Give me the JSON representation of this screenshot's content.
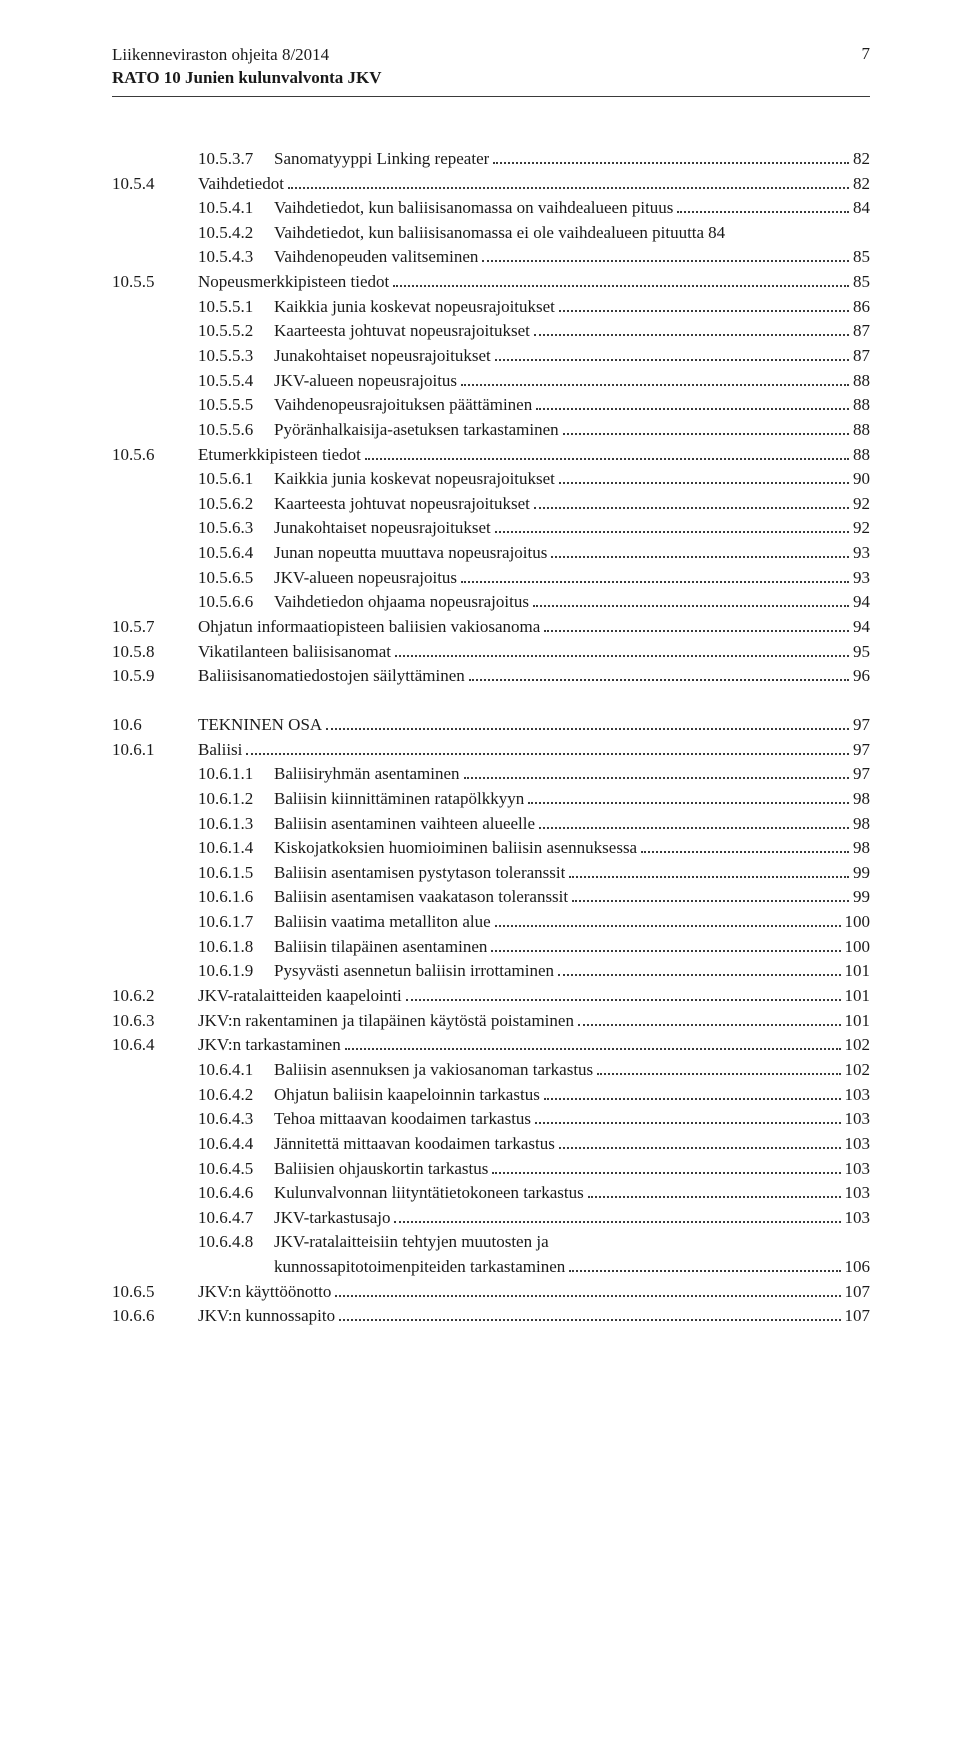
{
  "header": {
    "title": "Liikenneviraston ohjeita 8/2014",
    "subtitle": "RATO 10 Junien kulunvalvonta JKV",
    "page": "7"
  },
  "blocks": [
    {
      "rows": [
        {
          "indent": true,
          "sub": "10.5.3.7",
          "label": "Sanomatyyppi Linking repeater",
          "page": "82"
        },
        {
          "num": "10.5.4",
          "label": "Vaihdetiedot",
          "page": "82"
        },
        {
          "indent": true,
          "sub": "10.5.4.1",
          "label": "Vaihdetiedot, kun baliisisanomassa on vaihdealueen pituus",
          "page": "84"
        },
        {
          "indent": true,
          "sub": "10.5.4.2",
          "label": "Vaihdetiedot, kun baliisisanomassa ei ole vaihdealueen pituutta",
          "page": "84",
          "noLeader": true
        },
        {
          "indent": true,
          "sub": "10.5.4.3",
          "label": "Vaihdenopeuden valitseminen",
          "page": "85"
        },
        {
          "num": "10.5.5",
          "label": "Nopeusmerkkipisteen tiedot",
          "page": "85"
        },
        {
          "indent": true,
          "sub": "10.5.5.1",
          "label": "Kaikkia junia koskevat nopeusrajoitukset",
          "page": "86"
        },
        {
          "indent": true,
          "sub": "10.5.5.2",
          "label": "Kaarteesta johtuvat nopeusrajoitukset",
          "page": "87"
        },
        {
          "indent": true,
          "sub": "10.5.5.3",
          "label": "Junakohtaiset nopeusrajoitukset",
          "page": "87"
        },
        {
          "indent": true,
          "sub": "10.5.5.4",
          "label": "JKV-alueen nopeusrajoitus",
          "page": "88"
        },
        {
          "indent": true,
          "sub": "10.5.5.5",
          "label": "Vaihdenopeusrajoituksen päättäminen",
          "page": "88"
        },
        {
          "indent": true,
          "sub": "10.5.5.6",
          "label": "Pyöränhalkaisija-asetuksen tarkastaminen",
          "page": "88"
        },
        {
          "num": "10.5.6",
          "label": "Etumerkkipisteen tiedot",
          "page": "88"
        },
        {
          "indent": true,
          "sub": "10.5.6.1",
          "label": "Kaikkia junia koskevat nopeusrajoitukset",
          "page": "90"
        },
        {
          "indent": true,
          "sub": "10.5.6.2",
          "label": "Kaarteesta johtuvat nopeusrajoitukset",
          "page": "92"
        },
        {
          "indent": true,
          "sub": "10.5.6.3",
          "label": "Junakohtaiset nopeusrajoitukset",
          "page": "92"
        },
        {
          "indent": true,
          "sub": "10.5.6.4",
          "label": "Junan nopeutta muuttava nopeusrajoitus",
          "page": "93"
        },
        {
          "indent": true,
          "sub": "10.5.6.5",
          "label": "JKV-alueen nopeusrajoitus",
          "page": "93"
        },
        {
          "indent": true,
          "sub": "10.5.6.6",
          "label": "Vaihdetiedon ohjaama nopeusrajoitus",
          "page": "94"
        },
        {
          "num": "10.5.7",
          "label": "Ohjatun informaatiopisteen baliisien vakiosanoma",
          "page": "94"
        },
        {
          "num": "10.5.8",
          "label": "Vikatilanteen baliisisanomat",
          "page": "95"
        },
        {
          "num": "10.5.9",
          "label": "Baliisisanomatiedostojen säilyttäminen",
          "page": "96"
        }
      ]
    },
    {
      "rows": [
        {
          "num": "10.6",
          "label": "TEKNINEN OSA",
          "page": "97"
        },
        {
          "num": "10.6.1",
          "label": "Baliisi",
          "page": "97"
        },
        {
          "indent": true,
          "sub": "10.6.1.1",
          "label": "Baliisiryhmän asentaminen",
          "page": "97"
        },
        {
          "indent": true,
          "sub": "10.6.1.2",
          "label": "Baliisin kiinnittäminen ratapölkkyyn",
          "page": "98"
        },
        {
          "indent": true,
          "sub": "10.6.1.3",
          "label": "Baliisin asentaminen vaihteen alueelle",
          "page": "98"
        },
        {
          "indent": true,
          "sub": "10.6.1.4",
          "label": "Kiskojatkoksien huomioiminen baliisin asennuksessa",
          "page": "98"
        },
        {
          "indent": true,
          "sub": "10.6.1.5",
          "label": "Baliisin asentamisen pystytason toleranssit",
          "page": "99"
        },
        {
          "indent": true,
          "sub": "10.6.1.6",
          "label": "Baliisin asentamisen vaakatason toleranssit",
          "page": "99"
        },
        {
          "indent": true,
          "sub": "10.6.1.7",
          "label": "Baliisin vaatima metalliton alue",
          "page": "100"
        },
        {
          "indent": true,
          "sub": "10.6.1.8",
          "label": "Baliisin tilapäinen asentaminen",
          "page": "100"
        },
        {
          "indent": true,
          "sub": "10.6.1.9",
          "label": "Pysyvästi asennetun baliisin irrottaminen",
          "page": "101"
        },
        {
          "num": "10.6.2",
          "label": "JKV-ratalaitteiden kaapelointi",
          "page": "101"
        },
        {
          "num": "10.6.3",
          "label": "JKV:n rakentaminen ja tilapäinen käytöstä poistaminen",
          "page": "101"
        },
        {
          "num": "10.6.4",
          "label": "JKV:n tarkastaminen",
          "page": "102"
        },
        {
          "indent": true,
          "sub": "10.6.4.1",
          "label": "Baliisin asennuksen ja vakiosanoman tarkastus",
          "page": "102"
        },
        {
          "indent": true,
          "sub": "10.6.4.2",
          "label": "Ohjatun baliisin kaapeloinnin tarkastus",
          "page": "103"
        },
        {
          "indent": true,
          "sub": "10.6.4.3",
          "label": "Tehoa mittaavan koodaimen tarkastus",
          "page": "103"
        },
        {
          "indent": true,
          "sub": "10.6.4.4",
          "label": "Jännitettä mittaavan koodaimen tarkastus",
          "page": "103"
        },
        {
          "indent": true,
          "sub": "10.6.4.5",
          "label": "Baliisien ohjauskortin tarkastus",
          "page": "103"
        },
        {
          "indent": true,
          "sub": "10.6.4.6",
          "label": "Kulunvalvonnan liityntätietokoneen tarkastus",
          "page": "103"
        },
        {
          "indent": true,
          "sub": "10.6.4.7",
          "label": "JKV-tarkastusajo",
          "page": "103"
        },
        {
          "indent": true,
          "sub": "10.6.4.8",
          "label": "JKV-ratalaitteisiin tehtyjen muutosten ja",
          "label2": "kunnossapitotoimenpiteiden tarkastaminen",
          "page": "106",
          "twoLine": true
        },
        {
          "num": "10.6.5",
          "label": "JKV:n käyttöönotto",
          "page": "107"
        },
        {
          "num": "10.6.6",
          "label": "JKV:n kunnossapito",
          "page": "107"
        }
      ]
    }
  ]
}
